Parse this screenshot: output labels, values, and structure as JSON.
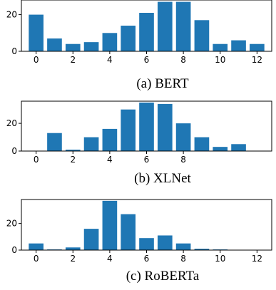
{
  "chart_data": [
    {
      "type": "bar",
      "caption": "(a) BERT",
      "x": [
        0,
        1,
        2,
        3,
        4,
        5,
        6,
        7,
        8,
        9,
        10,
        11,
        12
      ],
      "values": [
        20,
        7,
        4,
        5,
        10,
        14,
        21,
        27,
        27,
        17,
        4,
        6,
        4
      ],
      "xticks": [
        0,
        2,
        4,
        6,
        8,
        10,
        12
      ],
      "yticks": [
        0,
        20
      ],
      "xlim": [
        -0.8,
        12.8
      ],
      "ylim": [
        0,
        28
      ],
      "bar_color": "#1f77b4",
      "grid": false
    },
    {
      "type": "bar",
      "caption": "(b) XLNet",
      "x": [
        0,
        1,
        2,
        3,
        4,
        5,
        6,
        7,
        8,
        9,
        10,
        11,
        12
      ],
      "values": [
        0,
        13,
        1,
        10,
        16,
        30,
        35,
        34,
        20,
        10,
        3,
        5,
        0
      ],
      "xticks": [
        0,
        2,
        4,
        6,
        8
      ],
      "yticks": [
        0,
        20
      ],
      "xlim": [
        -0.8,
        12.8
      ],
      "ylim": [
        0,
        36
      ],
      "bar_color": "#1f77b4",
      "grid": false
    },
    {
      "type": "bar",
      "caption": "(c) RoBERTa",
      "x": [
        0,
        1,
        2,
        3,
        4,
        5,
        6,
        7,
        8,
        9,
        10,
        11,
        12
      ],
      "values": [
        5,
        0.5,
        2,
        16,
        37,
        27,
        9,
        11,
        5,
        1,
        0.5,
        0,
        0
      ],
      "xticks": [
        0,
        2,
        4,
        6,
        8,
        10,
        12
      ],
      "yticks": [
        0,
        20
      ],
      "xlim": [
        -0.8,
        12.8
      ],
      "ylim": [
        0,
        38
      ],
      "bar_color": "#1f77b4",
      "grid": false
    }
  ]
}
